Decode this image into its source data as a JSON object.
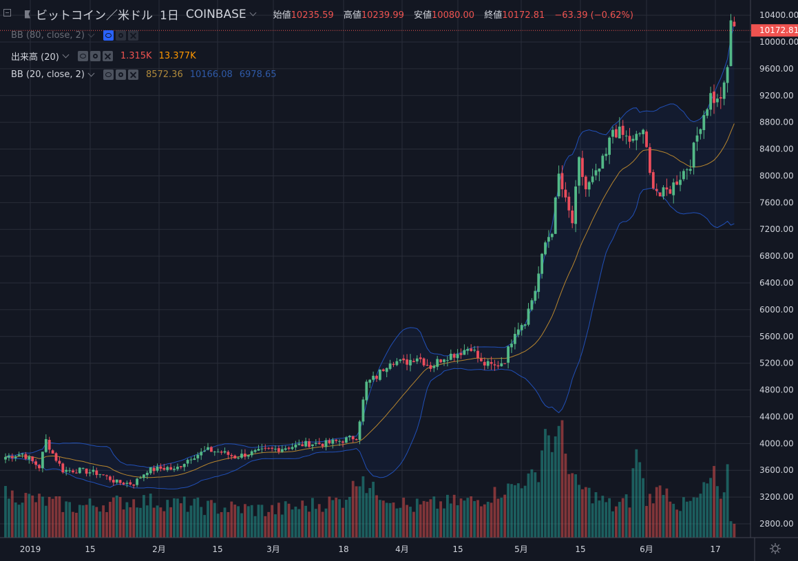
{
  "header": {
    "symbol_title": "ビットコイン／米ドル",
    "interval": "1日",
    "exchange": "COINBASE",
    "ohlc": {
      "open_label": "始値",
      "open": "10235.59",
      "high_label": "高値",
      "high": "10239.99",
      "low_label": "安値",
      "low": "10080.00",
      "close_label": "終値",
      "close": "10172.81",
      "change": "−63.39 (−0.62%)"
    }
  },
  "indicators": {
    "bb80": {
      "name": "BB (80, close, 2)"
    },
    "volume": {
      "name": "出来高 (20)",
      "value1": "1.315K",
      "value2": "13.377K"
    },
    "bb20": {
      "name": "BB (20, close, 2)",
      "basis": "8572.36",
      "upper": "10166.08",
      "lower": "6978.65"
    }
  },
  "price_axis": {
    "labels": [
      "10400.00",
      "10000.00",
      "9600.00",
      "9200.00",
      "8800.00",
      "8400.00",
      "8000.00",
      "7600.00",
      "7200.00",
      "6800.00",
      "6400.00",
      "6000.00",
      "5600.00",
      "5200.00",
      "4800.00",
      "4400.00",
      "4000.00",
      "3600.00",
      "3200.00",
      "2800.00"
    ],
    "last_price_label": "10172.81"
  },
  "time_axis": {
    "labels": [
      "2019",
      "15",
      "2月",
      "15",
      "3月",
      "18",
      "4月",
      "15",
      "5月",
      "15",
      "6月",
      "17"
    ]
  },
  "colors": {
    "background": "#131722",
    "up": "#26a69a",
    "down": "#ef5350",
    "up_body": "#53b987",
    "down_body": "#eb4d5c",
    "bb_band": "#2962ff",
    "bb_basis": "#ff9800",
    "grid": "#2a2e39"
  },
  "chart_data": {
    "type": "candlestick",
    "title": "ビットコイン／米ドル 1日 COINBASE",
    "ylim": [
      2600,
      10500
    ],
    "ticks": [
      10400,
      10000,
      9600,
      9200,
      8800,
      8400,
      8000,
      7600,
      7200,
      6800,
      6400,
      6000,
      5600,
      5200,
      4800,
      4400,
      4000,
      3600,
      3200,
      2800
    ],
    "date_ticks": [
      "2019",
      "15",
      "2月",
      "15",
      "3月",
      "18",
      "4月",
      "15",
      "5月",
      "15",
      "6月",
      "17"
    ],
    "last_price": 10172.81,
    "keypoints_close": [
      [
        0,
        3800
      ],
      [
        5,
        3850
      ],
      [
        10,
        3650
      ],
      [
        12,
        4050
      ],
      [
        14,
        3850
      ],
      [
        17,
        3600
      ],
      [
        22,
        3600
      ],
      [
        28,
        3550
      ],
      [
        33,
        3420
      ],
      [
        38,
        3400
      ],
      [
        42,
        3600
      ],
      [
        48,
        3640
      ],
      [
        50,
        3600
      ],
      [
        55,
        3800
      ],
      [
        60,
        3900
      ],
      [
        64,
        3870
      ],
      [
        68,
        3800
      ],
      [
        72,
        3850
      ],
      [
        78,
        3900
      ],
      [
        84,
        3950
      ],
      [
        90,
        4000
      ],
      [
        95,
        4000
      ],
      [
        100,
        4050
      ],
      [
        104,
        4100
      ],
      [
        107,
        4900
      ],
      [
        110,
        5000
      ],
      [
        114,
        5250
      ],
      [
        118,
        5200
      ],
      [
        122,
        5300
      ],
      [
        126,
        5150
      ],
      [
        130,
        5300
      ],
      [
        134,
        5350
      ],
      [
        138,
        5450
      ],
      [
        141,
        5200
      ],
      [
        145,
        5150
      ],
      [
        148,
        5250
      ],
      [
        151,
        5700
      ],
      [
        154,
        5850
      ],
      [
        157,
        6300
      ],
      [
        160,
        7000
      ],
      [
        162,
        7200
      ],
      [
        164,
        8000
      ],
      [
        166,
        7600
      ],
      [
        168,
        7300
      ],
      [
        170,
        8200
      ],
      [
        172,
        7800
      ],
      [
        175,
        8000
      ],
      [
        178,
        8300
      ],
      [
        180,
        8700
      ],
      [
        183,
        8600
      ],
      [
        186,
        8500
      ],
      [
        189,
        8700
      ],
      [
        191,
        8000
      ],
      [
        194,
        7700
      ],
      [
        197,
        7800
      ],
      [
        200,
        8000
      ],
      [
        203,
        8200
      ],
      [
        206,
        8800
      ],
      [
        209,
        9200
      ],
      [
        211,
        9100
      ],
      [
        213,
        9300
      ],
      [
        214,
        9600
      ],
      [
        215,
        10350
      ],
      [
        216,
        10150
      ]
    ],
    "volume_keypoints": [
      [
        0,
        3200
      ],
      [
        20,
        3000
      ],
      [
        40,
        3100
      ],
      [
        60,
        3000
      ],
      [
        80,
        2950
      ],
      [
        100,
        3100
      ],
      [
        106,
        3500
      ],
      [
        107,
        3300
      ],
      [
        120,
        3000
      ],
      [
        140,
        3100
      ],
      [
        150,
        3300
      ],
      [
        158,
        3500
      ],
      [
        160,
        4200
      ],
      [
        162,
        3900
      ],
      [
        164,
        4100
      ],
      [
        165,
        4300
      ],
      [
        167,
        3500
      ],
      [
        170,
        3300
      ],
      [
        180,
        3000
      ],
      [
        185,
        3100
      ],
      [
        187,
        3900
      ],
      [
        190,
        3100
      ],
      [
        195,
        3300
      ],
      [
        200,
        3000
      ],
      [
        205,
        3100
      ],
      [
        210,
        3500
      ],
      [
        212,
        3000
      ],
      [
        214,
        3600
      ],
      [
        215,
        2850
      ]
    ],
    "series_note": "BB(20,2) upper/basis/lower and BB(80,2) bands computed from closes; volume drawn as bars on price scale"
  }
}
